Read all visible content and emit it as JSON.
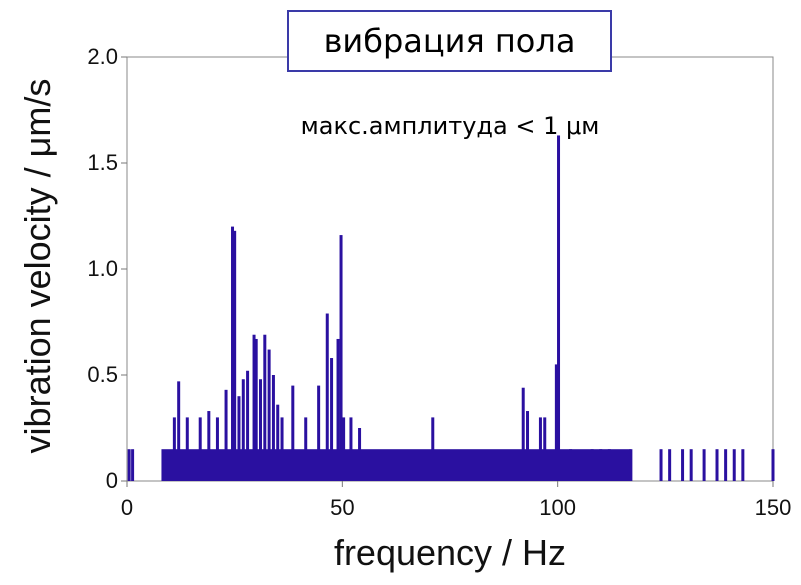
{
  "chart_data": {
    "type": "bar",
    "title": "вибрация пола",
    "subtitle": "макс.амплитуда < 1 μм",
    "xlabel": "frequency / Hz",
    "ylabel": "vibration velocity / μm/s",
    "xlim": [
      0,
      150
    ],
    "ylim": [
      0,
      2.0
    ],
    "xticks": [
      "0",
      "50",
      "100",
      "150"
    ],
    "yticks": [
      "0",
      "0.5",
      "1.0",
      "1.5",
      "2.0"
    ],
    "grid": false,
    "color": "#2a10a0",
    "background_band": {
      "from_x": 8,
      "to_x": 117,
      "value": 0.15
    },
    "x": [
      0.5,
      1.3,
      11,
      12,
      14,
      17,
      19,
      21,
      23,
      24.5,
      25,
      26,
      27,
      28,
      29.5,
      30,
      31,
      32,
      33,
      34,
      35,
      36,
      38.5,
      41.5,
      44.5,
      46.5,
      47.5,
      49,
      49.7,
      50.3,
      52,
      54,
      71,
      92,
      93,
      96,
      97,
      99.7,
      100.2,
      103,
      108,
      110,
      112,
      117,
      124,
      126,
      129,
      131,
      134,
      137,
      139,
      141,
      143,
      150
    ],
    "values": [
      0.15,
      0.15,
      0.3,
      0.47,
      0.3,
      0.3,
      0.33,
      0.3,
      0.43,
      1.2,
      1.18,
      0.4,
      0.48,
      0.52,
      0.69,
      0.67,
      0.48,
      0.69,
      0.62,
      0.5,
      0.36,
      0.3,
      0.45,
      0.3,
      0.45,
      0.79,
      0.58,
      0.67,
      1.16,
      0.3,
      0.3,
      0.25,
      0.3,
      0.44,
      0.33,
      0.3,
      0.3,
      0.55,
      1.63,
      0.15,
      0.15,
      0.15,
      0.15,
      0.15,
      0.15,
      0.15,
      0.15,
      0.15,
      0.15,
      0.15,
      0.15,
      0.15,
      0.15,
      0.15
    ]
  }
}
